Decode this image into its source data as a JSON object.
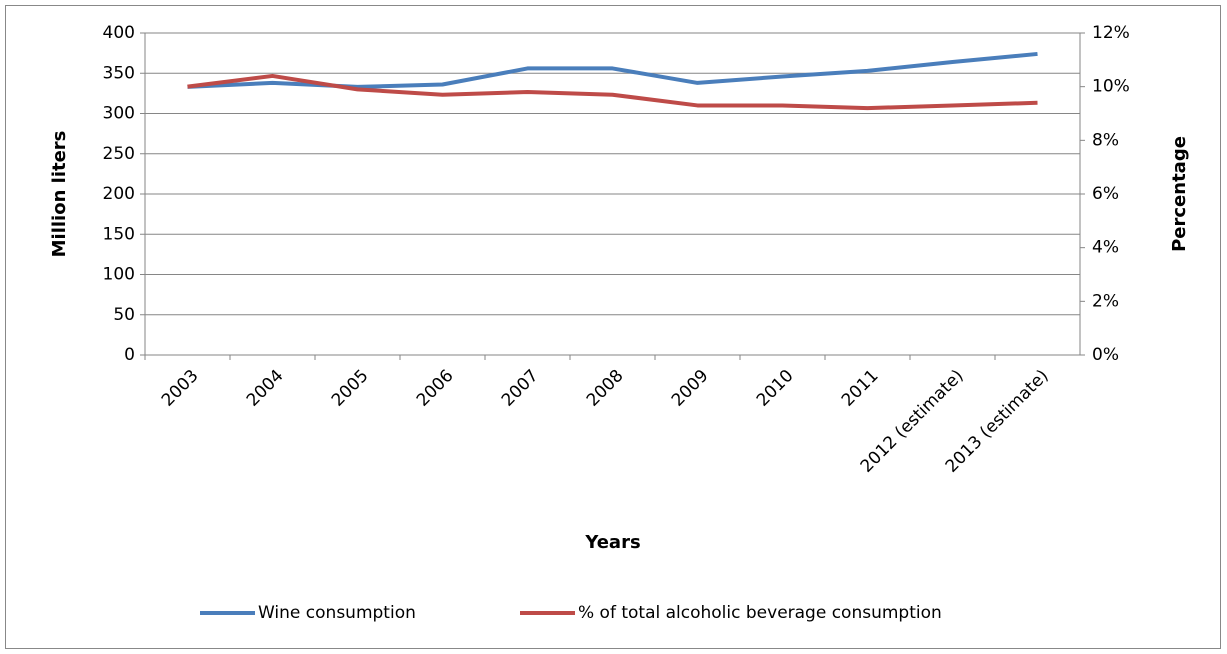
{
  "chart_data": {
    "type": "line",
    "x_label": "Years",
    "y_label": "Million liters",
    "y2_label": "Percentage",
    "categories": [
      "2003",
      "2004",
      "2005",
      "2006",
      "2007",
      "2008",
      "2009",
      "2010",
      "2011",
      "2012 (estimate)",
      "2013 (estimate)"
    ],
    "series": [
      {
        "name": "Wine consumption",
        "color": "#4a7ebb",
        "values": [
          333,
          338,
          333,
          336,
          356,
          356,
          338,
          346,
          353,
          364,
          374
        ]
      },
      {
        "name": "% of total alcoholic beverage consumption",
        "color": "#be4b48",
        "axis": "y2",
        "values": [
          10.0,
          10.4,
          9.9,
          9.7,
          9.8,
          9.7,
          9.3,
          9.3,
          9.2,
          9.3,
          9.4
        ]
      }
    ],
    "ylim": [
      0,
      400
    ],
    "yticks": [
      0,
      50,
      100,
      150,
      200,
      250,
      300,
      350,
      400
    ],
    "y2lim": [
      0,
      12
    ],
    "y2ticks": [
      {
        "value": 0,
        "label": "0%"
      },
      {
        "value": 2,
        "label": "2%"
      },
      {
        "value": 4,
        "label": "4%"
      },
      {
        "value": 6,
        "label": "6%"
      },
      {
        "value": 8,
        "label": "8%"
      },
      {
        "value": 10,
        "label": "10%"
      },
      {
        "value": 12,
        "label": "12%"
      }
    ],
    "grid": true,
    "legend": "bottom"
  }
}
